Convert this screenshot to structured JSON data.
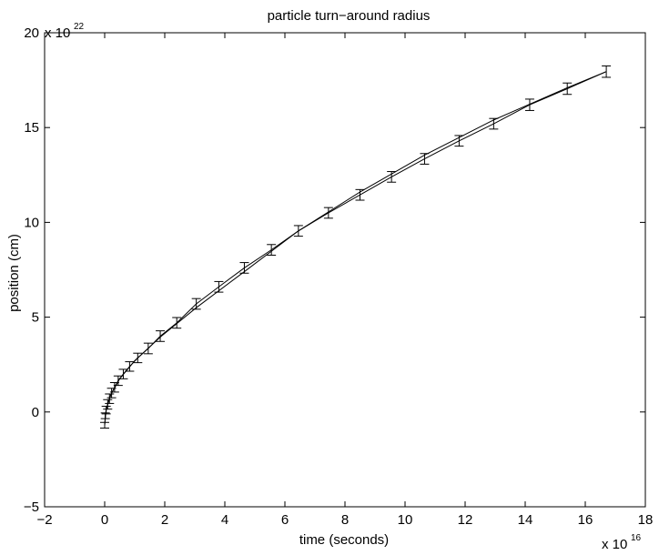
{
  "chart_data": {
    "type": "line",
    "title": "particle turn−around radius",
    "xlabel": "time (seconds)",
    "ylabel": "position (cm)",
    "x_multiplier": {
      "base": "x 10",
      "exponent": "16"
    },
    "y_multiplier": {
      "base": "x 10",
      "exponent": "22"
    },
    "xlim": [
      -2,
      18
    ],
    "ylim": [
      -5,
      20
    ],
    "x_ticks": [
      -2,
      0,
      2,
      4,
      6,
      8,
      10,
      12,
      14,
      16,
      18
    ],
    "x_tick_labels": [
      "−2",
      "0",
      "2",
      "4",
      "6",
      "8",
      "10",
      "12",
      "14",
      "16",
      "18"
    ],
    "y_ticks": [
      -5,
      0,
      5,
      10,
      15,
      20
    ],
    "y_tick_labels": [
      "−5",
      "0",
      "5",
      "10",
      "15",
      "20"
    ],
    "grid": false,
    "series": [
      {
        "style": "line-with-errorbars",
        "points": [
          {
            "x": 0.0,
            "y": -0.7,
            "err": 0.15
          },
          {
            "x": 0.02,
            "y": -0.2,
            "err": 0.15
          },
          {
            "x": 0.05,
            "y": 0.1,
            "err": 0.2
          },
          {
            "x": 0.1,
            "y": 0.4,
            "err": 0.25
          },
          {
            "x": 0.16,
            "y": 0.7,
            "err": 0.25
          },
          {
            "x": 0.23,
            "y": 1.0,
            "err": 0.25
          },
          {
            "x": 0.33,
            "y": 1.3,
            "err": 0.25
          },
          {
            "x": 0.45,
            "y": 1.65,
            "err": 0.25
          },
          {
            "x": 0.62,
            "y": 2.0,
            "err": 0.25
          },
          {
            "x": 0.83,
            "y": 2.4,
            "err": 0.25
          },
          {
            "x": 1.1,
            "y": 2.85,
            "err": 0.25
          },
          {
            "x": 1.45,
            "y": 3.35,
            "err": 0.28
          },
          {
            "x": 1.85,
            "y": 4.0,
            "err": 0.28
          },
          {
            "x": 2.4,
            "y": 4.7,
            "err": 0.28
          },
          {
            "x": 3.05,
            "y": 5.7,
            "err": 0.28
          },
          {
            "x": 3.8,
            "y": 6.6,
            "err": 0.28
          },
          {
            "x": 4.65,
            "y": 7.6,
            "err": 0.28
          },
          {
            "x": 5.55,
            "y": 8.55,
            "err": 0.28
          },
          {
            "x": 6.45,
            "y": 9.55,
            "err": 0.28
          },
          {
            "x": 7.45,
            "y": 10.5,
            "err": 0.28
          },
          {
            "x": 8.5,
            "y": 11.45,
            "err": 0.28
          },
          {
            "x": 9.55,
            "y": 12.4,
            "err": 0.28
          },
          {
            "x": 10.65,
            "y": 13.35,
            "err": 0.28
          },
          {
            "x": 11.8,
            "y": 14.3,
            "err": 0.28
          },
          {
            "x": 12.95,
            "y": 15.2,
            "err": 0.28
          },
          {
            "x": 14.15,
            "y": 16.2,
            "err": 0.3
          },
          {
            "x": 15.4,
            "y": 17.05,
            "err": 0.3
          },
          {
            "x": 16.7,
            "y": 17.95,
            "err": 0.3
          }
        ]
      },
      {
        "style": "line",
        "points": [
          {
            "x": 0.0,
            "y": -0.7
          },
          {
            "x": 0.05,
            "y": 0.15
          },
          {
            "x": 0.2,
            "y": 0.9
          },
          {
            "x": 0.5,
            "y": 1.75
          },
          {
            "x": 1.0,
            "y": 2.7
          },
          {
            "x": 1.85,
            "y": 3.95
          },
          {
            "x": 3.05,
            "y": 5.5
          },
          {
            "x": 4.65,
            "y": 7.4
          },
          {
            "x": 6.45,
            "y": 9.55
          },
          {
            "x": 8.5,
            "y": 11.6
          },
          {
            "x": 10.65,
            "y": 13.55
          },
          {
            "x": 12.95,
            "y": 15.4
          },
          {
            "x": 15.4,
            "y": 17.1
          },
          {
            "x": 16.7,
            "y": 17.95
          }
        ]
      }
    ]
  }
}
